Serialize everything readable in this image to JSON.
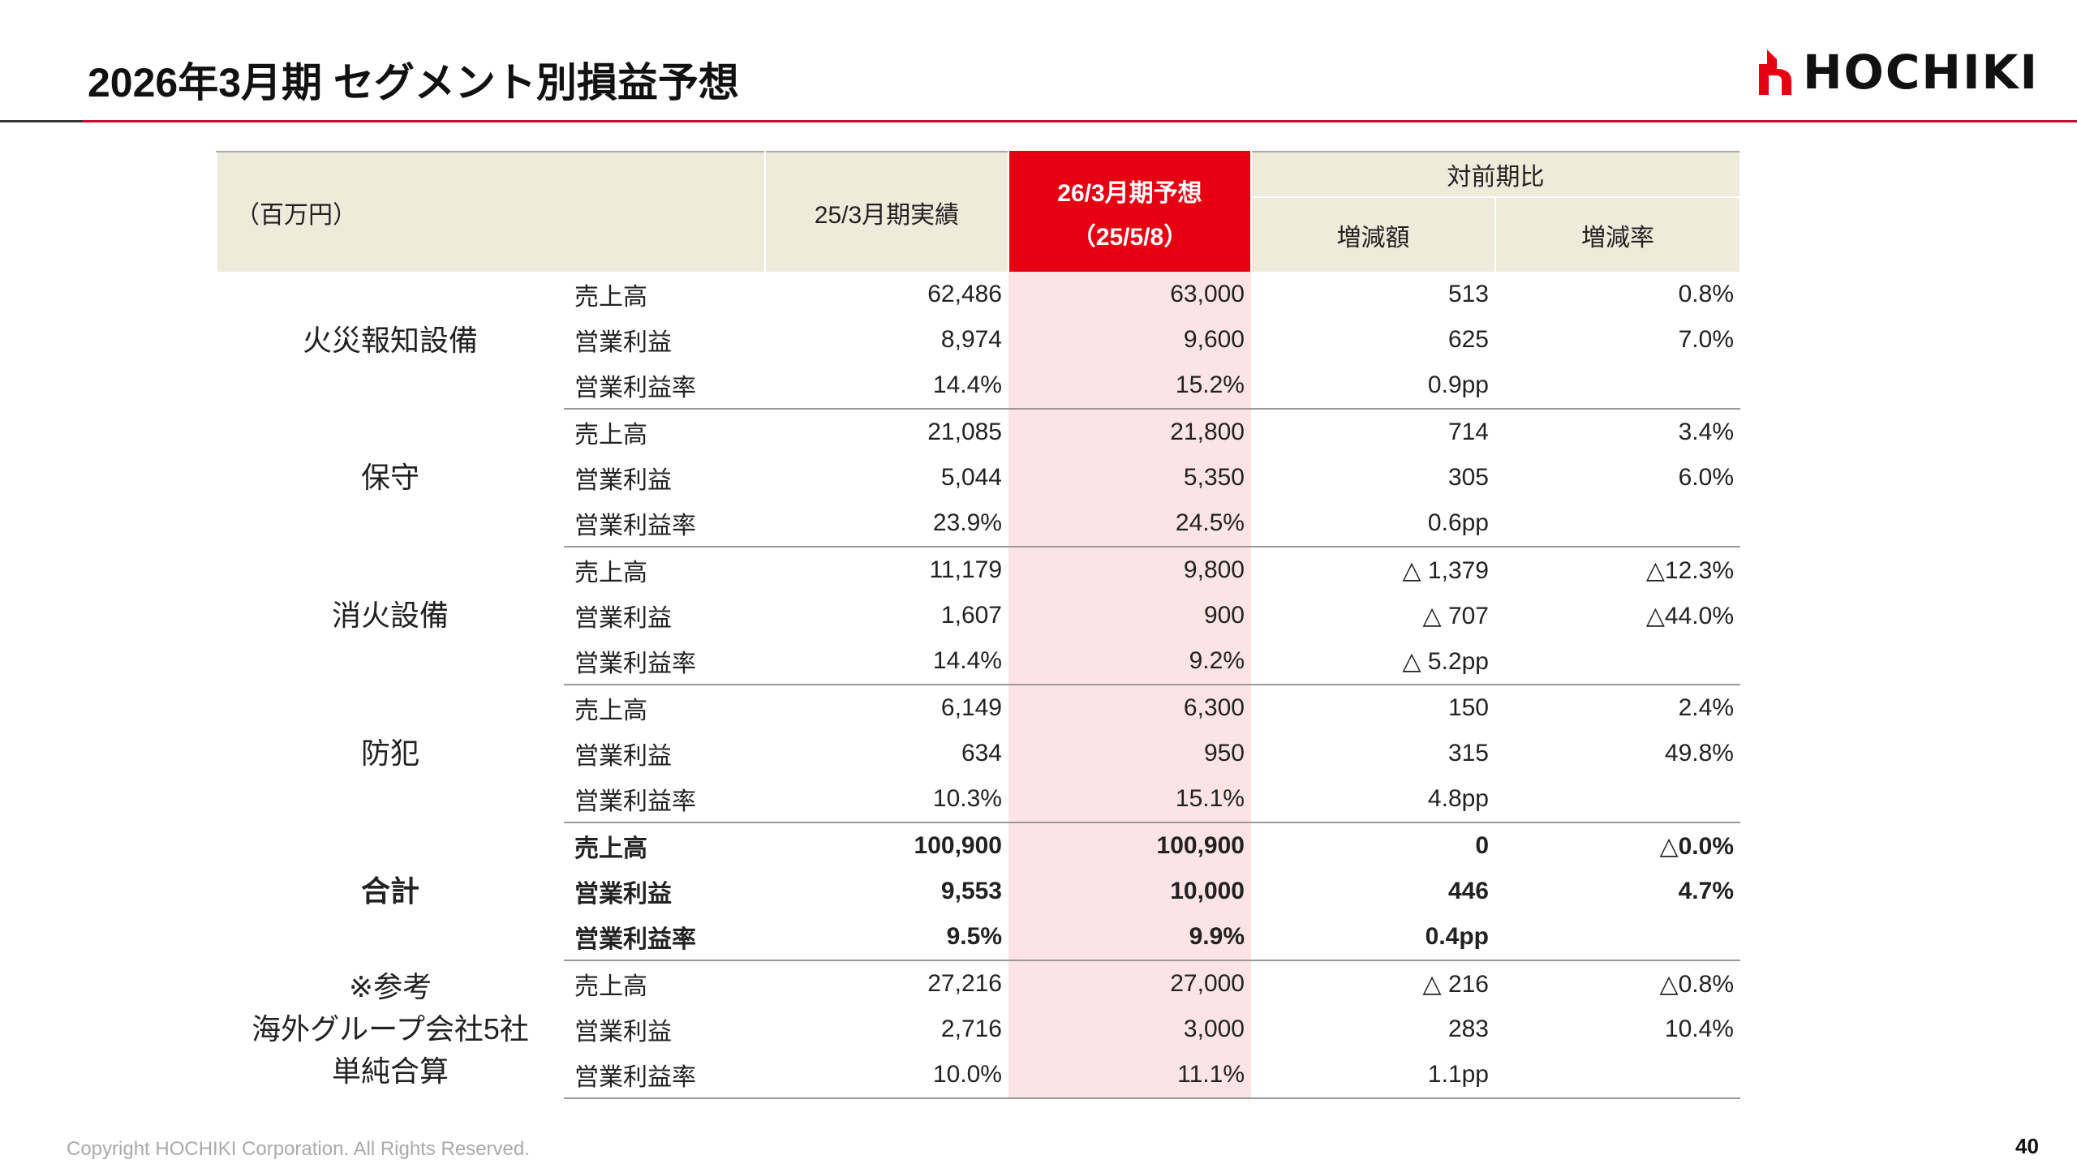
{
  "header": {
    "title": "2026年3月期 セグメント別損益予想",
    "logo": "HOCHIKI"
  },
  "table": {
    "unit": "（百万円）",
    "actual_header": "25/3月期実績",
    "forecast_header": [
      "26/3月期予想",
      "（25/5/8）"
    ],
    "comparison_header": "対前期比",
    "change_header": "増減額",
    "rate_header": "増減率",
    "groups": [
      {
        "name": [
          "火災報知設備"
        ],
        "rows": [
          {
            "item": "売上高",
            "actual": "62,486",
            "forecast": "63,000",
            "change": "513",
            "rate": "0.8%"
          },
          {
            "item": "営業利益",
            "actual": "8,974",
            "forecast": "9,600",
            "change": "625",
            "rate": "7.0%"
          },
          {
            "item": "営業利益率",
            "actual": "14.4%",
            "forecast": "15.2%",
            "change": "0.9pp"
          }
        ]
      },
      {
        "name": [
          "保守"
        ],
        "rows": [
          {
            "item": "売上高",
            "actual": "21,085",
            "forecast": "21,800",
            "change": "714",
            "rate": "3.4%"
          },
          {
            "item": "営業利益",
            "actual": "5,044",
            "forecast": "5,350",
            "change": "305",
            "rate": "6.0%"
          },
          {
            "item": "営業利益率",
            "actual": "23.9%",
            "forecast": "24.5%",
            "change": "0.6pp"
          }
        ]
      },
      {
        "name": [
          "消火設備"
        ],
        "rows": [
          {
            "item": "売上高",
            "actual": "11,179",
            "forecast": "9,800",
            "change": "△ 1,379",
            "rate": "△12.3%"
          },
          {
            "item": "営業利益",
            "actual": "1,607",
            "forecast": "900",
            "change": "△ 707",
            "rate": "△44.0%"
          },
          {
            "item": "営業利益率",
            "actual": "14.4%",
            "forecast": "9.2%",
            "change": "△ 5.2pp"
          }
        ]
      },
      {
        "name": [
          "防犯"
        ],
        "rows": [
          {
            "item": "売上高",
            "actual": "6,149",
            "forecast": "6,300",
            "change": "150",
            "rate": "2.4%"
          },
          {
            "item": "営業利益",
            "actual": "634",
            "forecast": "950",
            "change": "315",
            "rate": "49.8%"
          },
          {
            "item": "営業利益率",
            "actual": "10.3%",
            "forecast": "15.1%",
            "change": "4.8pp"
          }
        ]
      },
      {
        "name": [
          "合計"
        ],
        "bold": true,
        "rows": [
          {
            "item": "売上高",
            "actual": "100,900",
            "forecast": "100,900",
            "change": "0",
            "rate": "△0.0%"
          },
          {
            "item": "営業利益",
            "actual": "9,553",
            "forecast": "10,000",
            "change": "446",
            "rate": "4.7%"
          },
          {
            "item": "営業利益率",
            "actual": "9.5%",
            "forecast": "9.9%",
            "change": "0.4pp"
          }
        ]
      },
      {
        "name": [
          "※参考",
          "海外グループ会社5社",
          "単純合算"
        ],
        "rows": [
          {
            "item": "売上高",
            "actual": "27,216",
            "forecast": "27,000",
            "change": "△ 216",
            "rate": "△0.8%"
          },
          {
            "item": "営業利益",
            "actual": "2,716",
            "forecast": "3,000",
            "change": "283",
            "rate": "10.4%"
          },
          {
            "item": "営業利益率",
            "actual": "10.0%",
            "forecast": "11.1%",
            "change": "1.1pp"
          }
        ]
      }
    ]
  },
  "footer": {
    "copyright": "Copyright HOCHIKI Corporation. All Rights Reserved.",
    "page": "40"
  }
}
